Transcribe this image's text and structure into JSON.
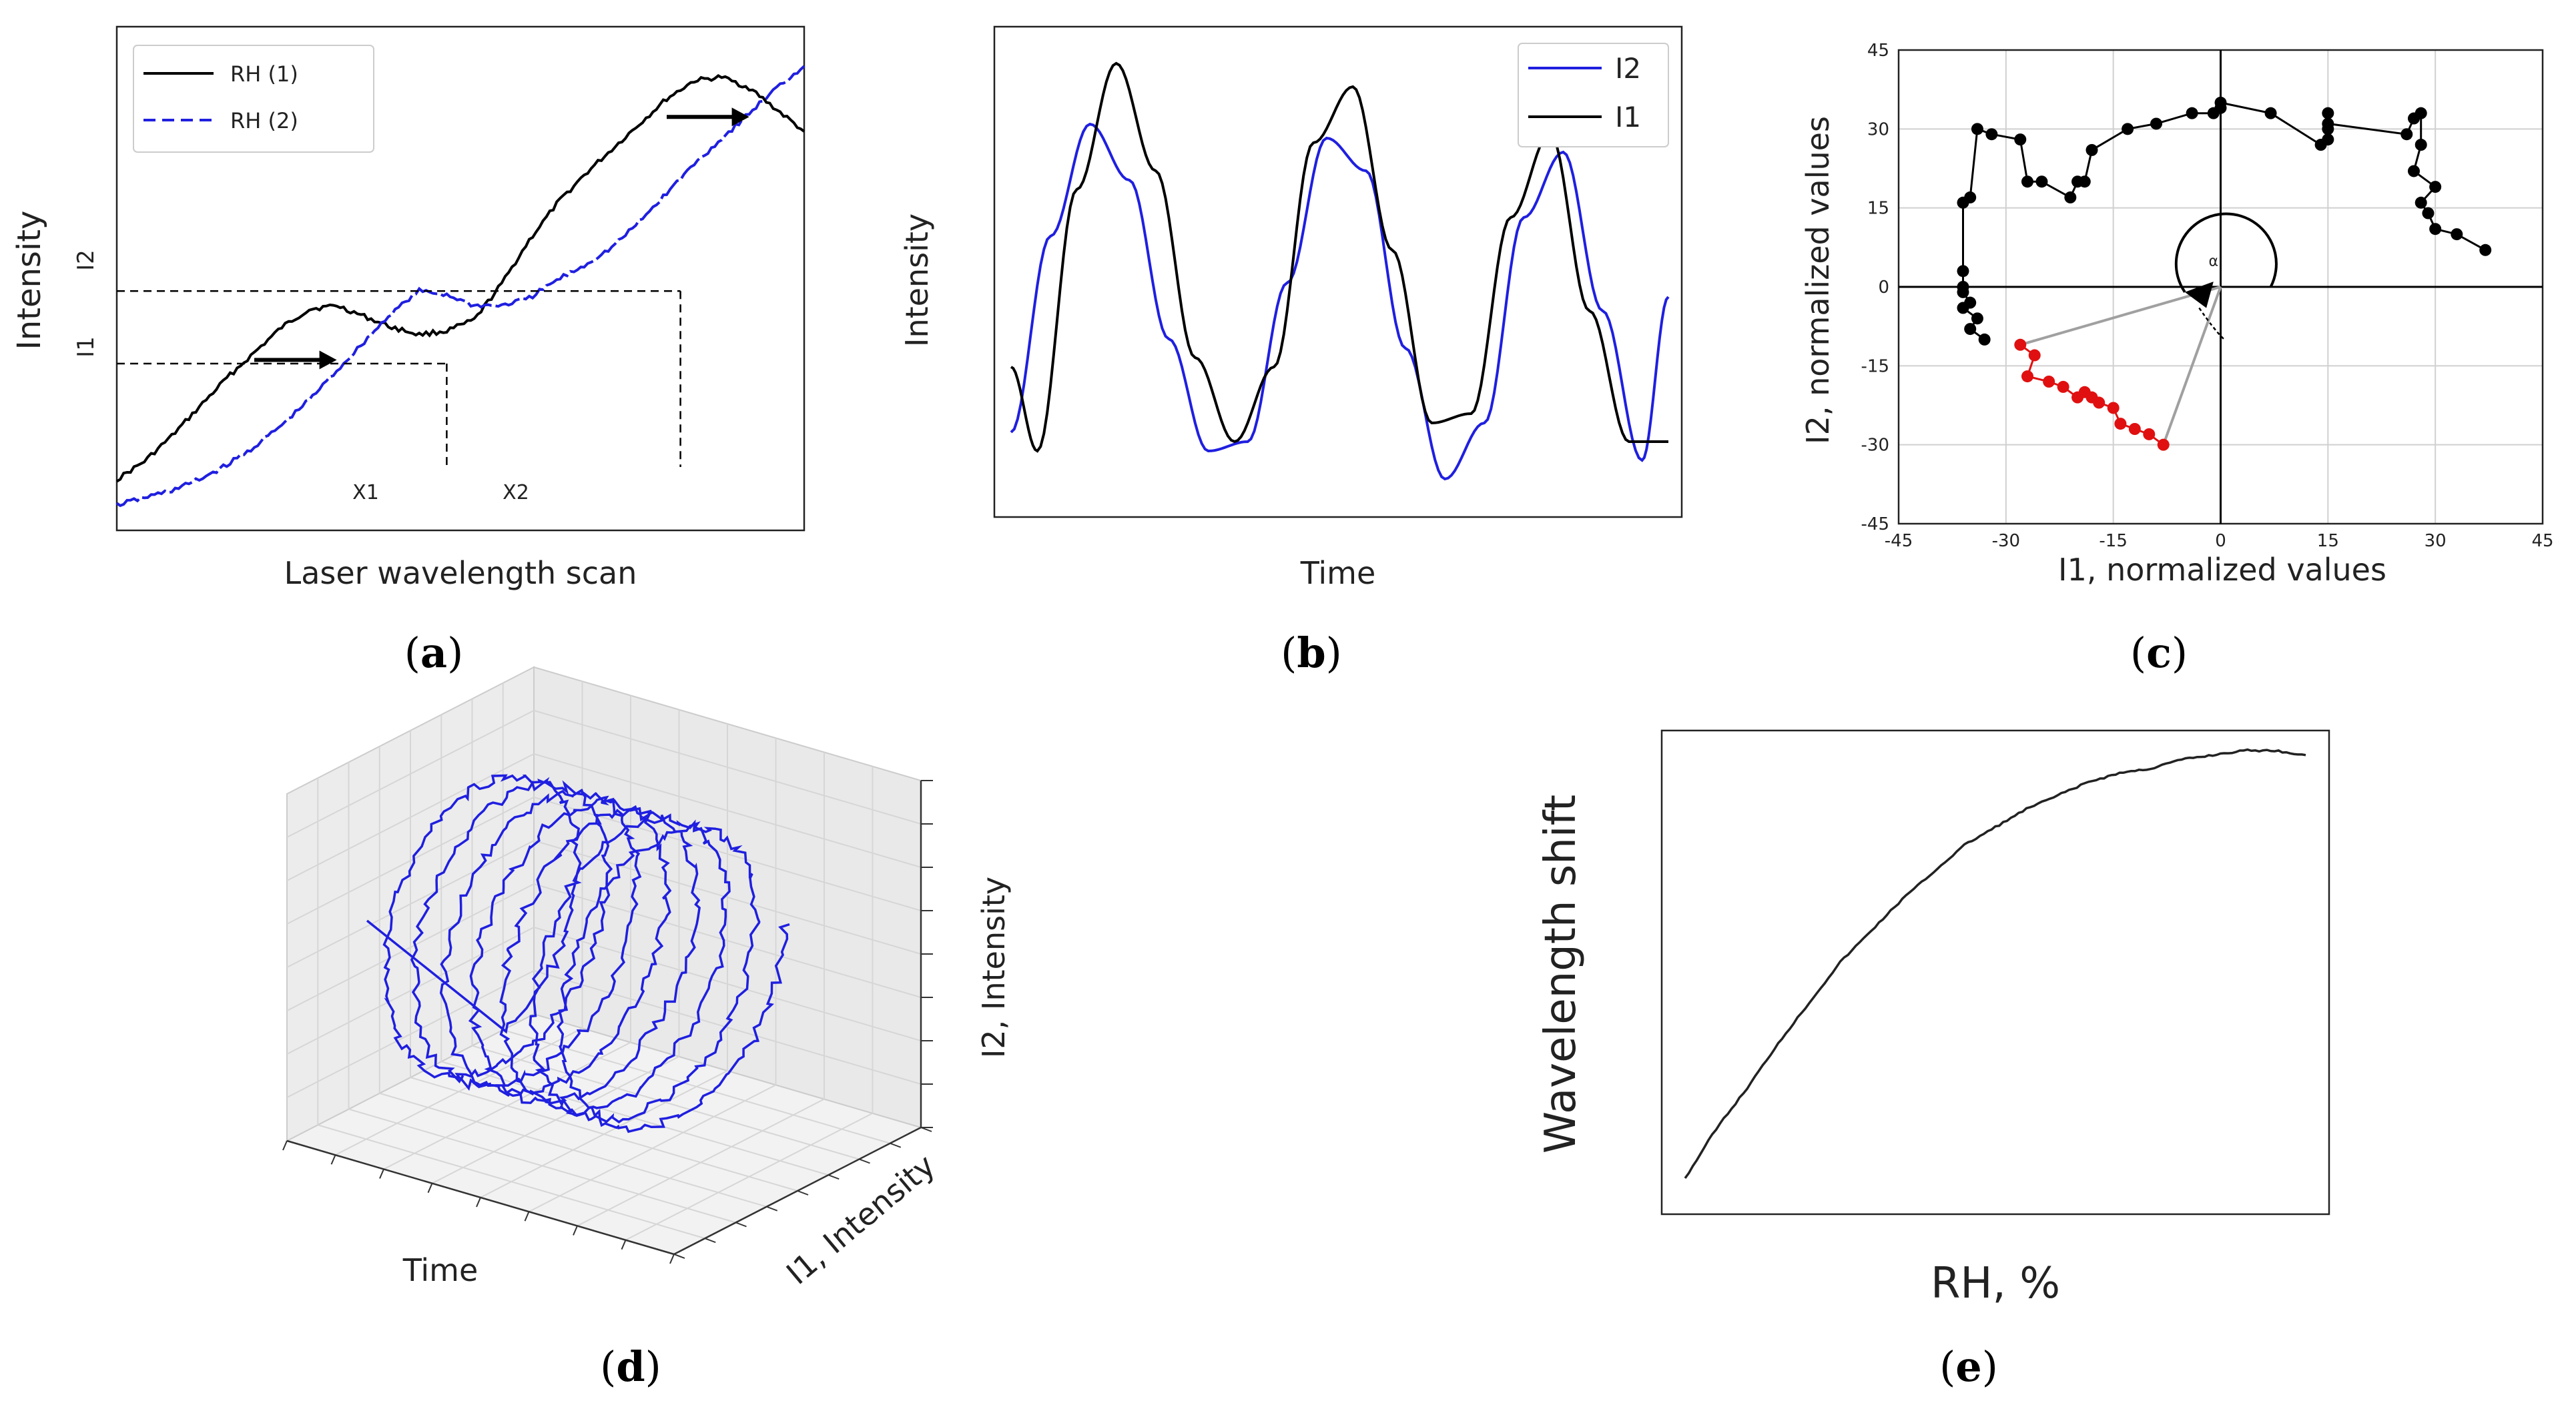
{
  "captions": {
    "a": {
      "open": "(",
      "letter": "a",
      "close": ")"
    },
    "b": {
      "open": "(",
      "letter": "b",
      "close": ")"
    },
    "c": {
      "open": "(",
      "letter": "c",
      "close": ")"
    },
    "d": {
      "open": "(",
      "letter": "d",
      "close": ")"
    },
    "e": {
      "open": "(",
      "letter": "e",
      "close": ")"
    }
  },
  "colors": {
    "black": "#000000",
    "blue": "#1f1fe0",
    "red": "#e01010",
    "grey": "#a0a0a0",
    "grid": "#d0d0d0"
  },
  "chart_data": [
    {
      "id": "a",
      "type": "line",
      "xlabel": "Laser wavelength scan",
      "ylabel": "Intensity",
      "ytick_labels": [
        "I1",
        "I2"
      ],
      "xtick_labels": [
        "X1",
        "X2"
      ],
      "legend_position": "top-left",
      "series": [
        {
          "name": "RH (1)",
          "style": "solid",
          "color": "#000000",
          "x": [
            0,
            0.04,
            0.08,
            0.12,
            0.16,
            0.2,
            0.24,
            0.28,
            0.32,
            0.36,
            0.4,
            0.44,
            0.48,
            0.52,
            0.56,
            0.6,
            0.64,
            0.68,
            0.72,
            0.76,
            0.8,
            0.84,
            0.88,
            0.92,
            0.96,
            1.0
          ],
          "y": [
            0.14,
            0.19,
            0.26,
            0.34,
            0.42,
            0.49,
            0.56,
            0.61,
            0.62,
            0.59,
            0.56,
            0.54,
            0.55,
            0.58,
            0.68,
            0.8,
            0.9,
            0.98,
            1.05,
            1.12,
            1.19,
            1.24,
            1.25,
            1.22,
            1.16,
            1.1
          ]
        },
        {
          "name": "RH (2)",
          "style": "dashed",
          "color": "#1f1fe0",
          "x": [
            0,
            0.04,
            0.08,
            0.12,
            0.16,
            0.2,
            0.24,
            0.28,
            0.32,
            0.36,
            0.4,
            0.44,
            0.48,
            0.52,
            0.56,
            0.6,
            0.64,
            0.68,
            0.72,
            0.76,
            0.8,
            0.84,
            0.88,
            0.92,
            0.96,
            1.0
          ],
          "y": [
            0.07,
            0.09,
            0.11,
            0.14,
            0.18,
            0.23,
            0.29,
            0.36,
            0.44,
            0.52,
            0.6,
            0.66,
            0.65,
            0.62,
            0.62,
            0.64,
            0.69,
            0.73,
            0.78,
            0.85,
            0.93,
            1.01,
            1.08,
            1.15,
            1.22,
            1.28
          ]
        }
      ],
      "annotations": {
        "I1_level": 0.46,
        "I2_level": 0.66,
        "X1": 0.48,
        "X2": 0.82,
        "arrow1": {
          "x": [
            0.2,
            0.32
          ],
          "y": 0.47
        },
        "arrow2": {
          "x": [
            0.8,
            0.92
          ],
          "y": 1.14
        }
      }
    },
    {
      "id": "b",
      "type": "line",
      "xlabel": "Time",
      "ylabel": "Intensity",
      "legend_position": "top-right",
      "series": [
        {
          "name": "I2",
          "color": "#1f1fe0",
          "waves": [
            {
              "x0": 0,
              "x1": 0.5,
              "start": 0.62,
              "peak": 0.15
            },
            {
              "x0": 0.5,
              "x1": 0.6,
              "start": 0.15,
              "peak": 0.82
            },
            {
              "x0": 0.6,
              "x1": 1.0,
              "start": 0.82,
              "peak": 0.15
            }
          ]
        },
        {
          "name": "I1",
          "color": "#000000",
          "waves": []
        }
      ],
      "i2": {
        "x": [
          0,
          0.06,
          0.12,
          0.18,
          0.24,
          0.3,
          0.36,
          0.42,
          0.48,
          0.54,
          0.6,
          0.66,
          0.72,
          0.78,
          0.84,
          0.9,
          0.96,
          1.0
        ],
        "y": [
          0.16,
          0.58,
          0.82,
          0.7,
          0.36,
          0.12,
          0.14,
          0.48,
          0.79,
          0.72,
          0.34,
          0.06,
          0.18,
          0.62,
          0.76,
          0.42,
          0.1,
          0.45
        ]
      },
      "i1": {
        "x": [
          0,
          0.04,
          0.1,
          0.16,
          0.22,
          0.28,
          0.34,
          0.4,
          0.46,
          0.52,
          0.58,
          0.64,
          0.7,
          0.76,
          0.82,
          0.88,
          0.94,
          1.0
        ],
        "y": [
          0.3,
          0.12,
          0.68,
          0.95,
          0.72,
          0.32,
          0.14,
          0.3,
          0.78,
          0.9,
          0.55,
          0.18,
          0.2,
          0.62,
          0.8,
          0.42,
          0.14,
          0.14
        ]
      }
    },
    {
      "id": "c",
      "type": "scatter",
      "xlabel": "I1, normalized values",
      "ylabel": "I2, normalized values",
      "xlim": [
        -45,
        45
      ],
      "ylim": [
        -45,
        45
      ],
      "xticks": [
        -45,
        -30,
        -15,
        0,
        15,
        30,
        45
      ],
      "yticks": [
        -45,
        -30,
        -15,
        0,
        15,
        30,
        45
      ],
      "grid": true,
      "angle_label": "α",
      "series": [
        {
          "color": "#000000",
          "x": [
            37,
            33,
            30,
            29,
            28,
            30,
            27,
            28,
            28,
            27,
            26,
            15,
            15,
            15,
            15,
            14,
            7,
            0,
            0,
            -1,
            -4,
            -9,
            -13,
            -18,
            -19,
            -20,
            -21,
            -25,
            -27,
            -28,
            -32,
            -34,
            -35,
            -36,
            -36,
            -36,
            -36,
            -35,
            -36,
            -34,
            -35,
            -33
          ],
          "y": [
            7,
            10,
            11,
            14,
            16,
            19,
            22,
            27,
            33,
            32,
            29,
            31,
            33,
            30,
            28,
            27,
            33,
            35,
            34,
            33,
            33,
            31,
            30,
            26,
            20,
            20,
            17,
            20,
            20,
            28,
            29,
            30,
            17,
            16,
            3,
            0,
            -1,
            -3,
            -4,
            -6,
            -8,
            -10
          ],
          "sequence": "connected"
        },
        {
          "color": "#e01010",
          "x": [
            -28,
            -26,
            -27,
            -24,
            -22,
            -20,
            -19,
            -18,
            -17,
            -15,
            -14,
            -12,
            -10,
            -8
          ],
          "y": [
            -11,
            -13,
            -17,
            -18,
            -19,
            -21,
            -20,
            -21,
            -22,
            -23,
            -26,
            -27,
            -28,
            -30
          ]
        }
      ]
    },
    {
      "id": "d",
      "type": "line3d",
      "xlabel": "Time",
      "ylabel": "I1, Intensity",
      "zlabel": "I2, Intensity"
    },
    {
      "id": "e",
      "type": "line",
      "xlabel": "RH, %",
      "ylabel": "Wavelength shift",
      "x": [
        0,
        0.05,
        0.1,
        0.15,
        0.2,
        0.25,
        0.3,
        0.35,
        0.4,
        0.45,
        0.5,
        0.55,
        0.6,
        0.65,
        0.7,
        0.75,
        0.8,
        0.85,
        0.9,
        0.95,
        1.0
      ],
      "y": [
        0.05,
        0.16,
        0.25,
        0.35,
        0.44,
        0.53,
        0.6,
        0.67,
        0.73,
        0.79,
        0.83,
        0.87,
        0.9,
        0.93,
        0.95,
        0.96,
        0.98,
        0.99,
        1.0,
        1.0,
        0.99
      ]
    }
  ],
  "labels": {
    "a_legend_1": "RH (1)",
    "a_legend_2": "RH (2)",
    "b_legend_1": "I2",
    "b_legend_2": "I1",
    "a_xlabel": "Laser wavelength scan",
    "a_ylabel": "Intensity",
    "a_I1": "I1",
    "a_I2": "I2",
    "a_X1": "X1",
    "a_X2": "X2",
    "b_xlabel": "Time",
    "b_ylabel": "Intensity",
    "c_xlabel": "I1, normalized values",
    "c_ylabel": "I2, normalized values",
    "c_alpha": "α",
    "d_xlabel": "Time",
    "d_ylabel": "I1, Intensity",
    "d_zlabel": "I2, Intensity",
    "e_xlabel": "RH, %",
    "e_ylabel": "Wavelength shift"
  }
}
